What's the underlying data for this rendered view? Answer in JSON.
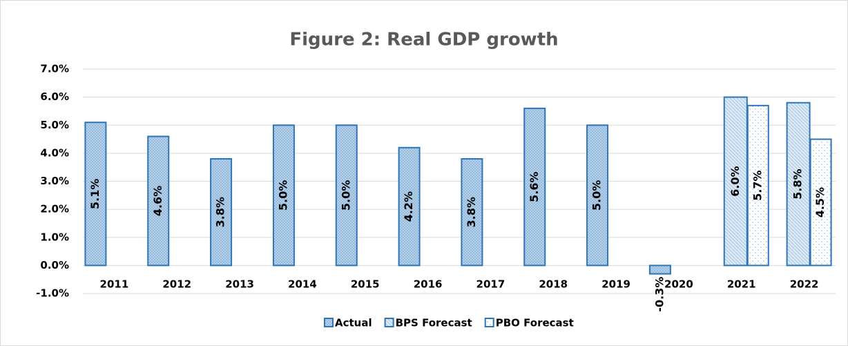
{
  "chart_data": {
    "type": "bar",
    "title": "Figure 2: Real GDP growth",
    "categories": [
      "2011",
      "2012",
      "2013",
      "2014",
      "2015",
      "2016",
      "2017",
      "2018",
      "2019",
      "2020",
      "2021",
      "2022"
    ],
    "series": [
      {
        "name": "Actual",
        "color": "#2e75b6",
        "values": [
          5.1,
          4.6,
          3.8,
          5.0,
          5.0,
          4.2,
          3.8,
          5.6,
          5.0,
          -0.3,
          null,
          null
        ],
        "value_labels": [
          "5.1%",
          "4.6%",
          "3.8%",
          "5.0%",
          "5.0%",
          "4.2%",
          "3.8%",
          "5.6%",
          "5.0%",
          "-0.3%",
          null,
          null
        ]
      },
      {
        "name": "BPS Forecast",
        "color": "#2e75b6",
        "values": [
          null,
          null,
          null,
          null,
          null,
          null,
          null,
          null,
          null,
          null,
          6.0,
          5.8
        ],
        "value_labels": [
          null,
          null,
          null,
          null,
          null,
          null,
          null,
          null,
          null,
          null,
          "6.0%",
          "5.8%"
        ]
      },
      {
        "name": "PBO Forecast",
        "color": "#2e75b6",
        "values": [
          null,
          null,
          null,
          null,
          null,
          null,
          null,
          null,
          null,
          null,
          5.7,
          4.5
        ],
        "value_labels": [
          null,
          null,
          null,
          null,
          null,
          null,
          null,
          null,
          null,
          null,
          "5.7%",
          "4.5%"
        ]
      }
    ],
    "ylim": [
      -1.0,
      7.0
    ],
    "yticks": [
      {
        "value": -1.0,
        "label": "-1.0%"
      },
      {
        "value": 0.0,
        "label": "0.0%"
      },
      {
        "value": 1.0,
        "label": "1.0%"
      },
      {
        "value": 2.0,
        "label": "2.0%"
      },
      {
        "value": 3.0,
        "label": "3.0%"
      },
      {
        "value": 4.0,
        "label": "4.0%"
      },
      {
        "value": 5.0,
        "label": "5.0%"
      },
      {
        "value": 6.0,
        "label": "6.0%"
      },
      {
        "value": 7.0,
        "label": "7.0%"
      }
    ],
    "grid": true,
    "legend": "bottom"
  }
}
